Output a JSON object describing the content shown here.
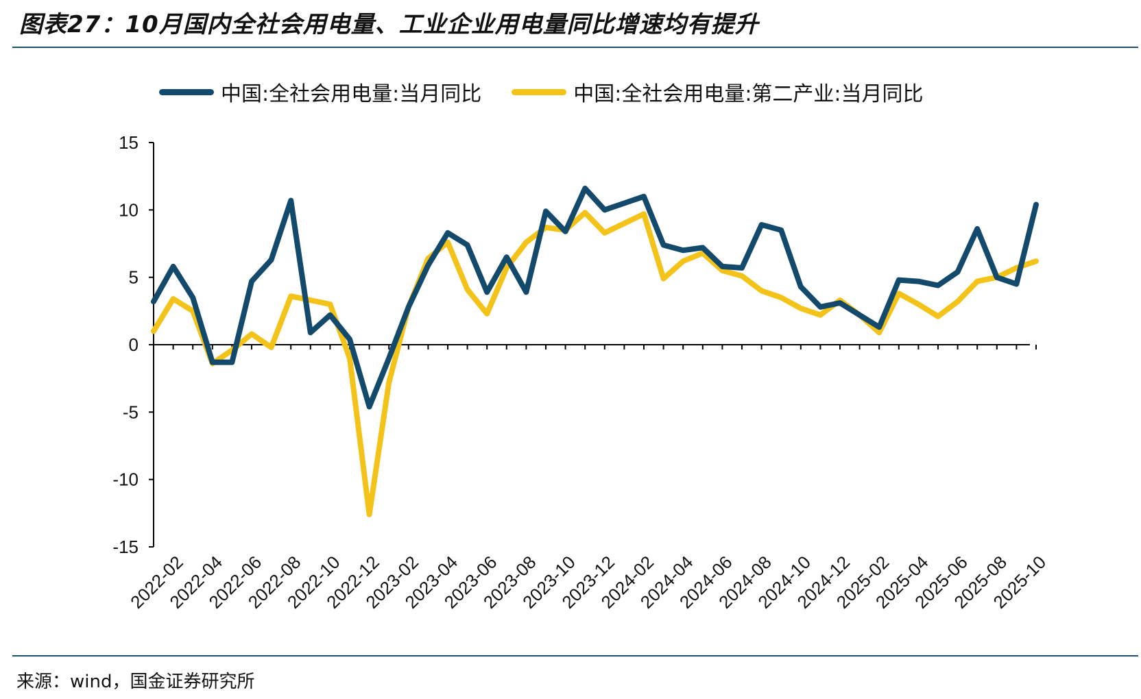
{
  "title": "图表27：10月国内全社会用电量、工业企业用电量同比增速均有提升",
  "source": "来源：wind，国金证券研究所",
  "colors": {
    "series1": "#134a6b",
    "series2": "#f3c31a",
    "rule": "#1f4e6e"
  },
  "chart_data": {
    "type": "line",
    "title": "图表27：10月国内全社会用电量、工业企业用电量同比增速均有提升",
    "xlabel": "",
    "ylabel": "",
    "ylim": [
      -15,
      15
    ],
    "yticks": [
      "15",
      "10",
      "5",
      "0",
      "-5",
      "-10",
      "-15"
    ],
    "x": [
      "2022-01",
      "2022-02",
      "2022-03",
      "2022-04",
      "2022-05",
      "2022-06",
      "2022-07",
      "2022-08",
      "2022-09",
      "2022-10",
      "2022-11",
      "2022-12",
      "2023-01",
      "2023-02",
      "2023-03",
      "2023-04",
      "2023-05",
      "2023-06",
      "2023-07",
      "2023-08",
      "2023-09",
      "2023-10",
      "2023-11",
      "2023-12",
      "2024-01",
      "2024-02",
      "2024-03",
      "2024-04",
      "2024-05",
      "2024-06",
      "2024-07",
      "2024-08",
      "2024-09",
      "2024-10",
      "2024-11",
      "2024-12",
      "2025-01",
      "2025-02",
      "2025-03",
      "2025-04",
      "2025-05",
      "2025-06",
      "2025-07",
      "2025-08",
      "2025-09",
      "2025-10"
    ],
    "xtick_labels": [
      "2022-02",
      "2022-04",
      "2022-06",
      "2022-08",
      "2022-10",
      "2022-12",
      "2023-02",
      "2023-04",
      "2023-06",
      "2023-08",
      "2023-10",
      "2023-12",
      "2024-02",
      "2024-04",
      "2024-06",
      "2024-08",
      "2024-10",
      "2024-12",
      "2025-02",
      "2025-04",
      "2025-06",
      "2025-08",
      "2025-10"
    ],
    "series": [
      {
        "name": "中国:全社会用电量:当月同比",
        "values": [
          3.2,
          5.8,
          3.5,
          -1.3,
          -1.3,
          4.7,
          6.3,
          10.7,
          0.9,
          2.2,
          0.4,
          -4.6,
          -1.0,
          2.8,
          5.9,
          8.3,
          7.4,
          3.9,
          6.5,
          3.9,
          9.9,
          8.4,
          11.6,
          10.0,
          10.5,
          11.0,
          7.4,
          7.0,
          7.2,
          5.8,
          5.7,
          8.9,
          8.5,
          4.3,
          2.8,
          3.1,
          2.2,
          1.3,
          4.8,
          4.7,
          4.4,
          5.4,
          8.6,
          5.0,
          4.5,
          10.4
        ]
      },
      {
        "name": "中国:全社会用电量:第二产业:当月同比",
        "values": [
          1.0,
          3.4,
          2.5,
          -1.4,
          -0.4,
          0.8,
          -0.2,
          3.6,
          3.3,
          3.0,
          -1.0,
          -12.6,
          -2.8,
          2.8,
          6.4,
          7.6,
          4.1,
          2.3,
          5.7,
          7.6,
          8.7,
          8.5,
          9.8,
          8.3,
          9.0,
          9.7,
          4.9,
          6.2,
          6.8,
          5.5,
          5.1,
          4.0,
          3.5,
          2.7,
          2.2,
          3.3,
          2.2,
          0.9,
          3.8,
          3.0,
          2.1,
          3.2,
          4.7,
          5.0,
          5.7,
          6.2
        ]
      }
    ]
  }
}
